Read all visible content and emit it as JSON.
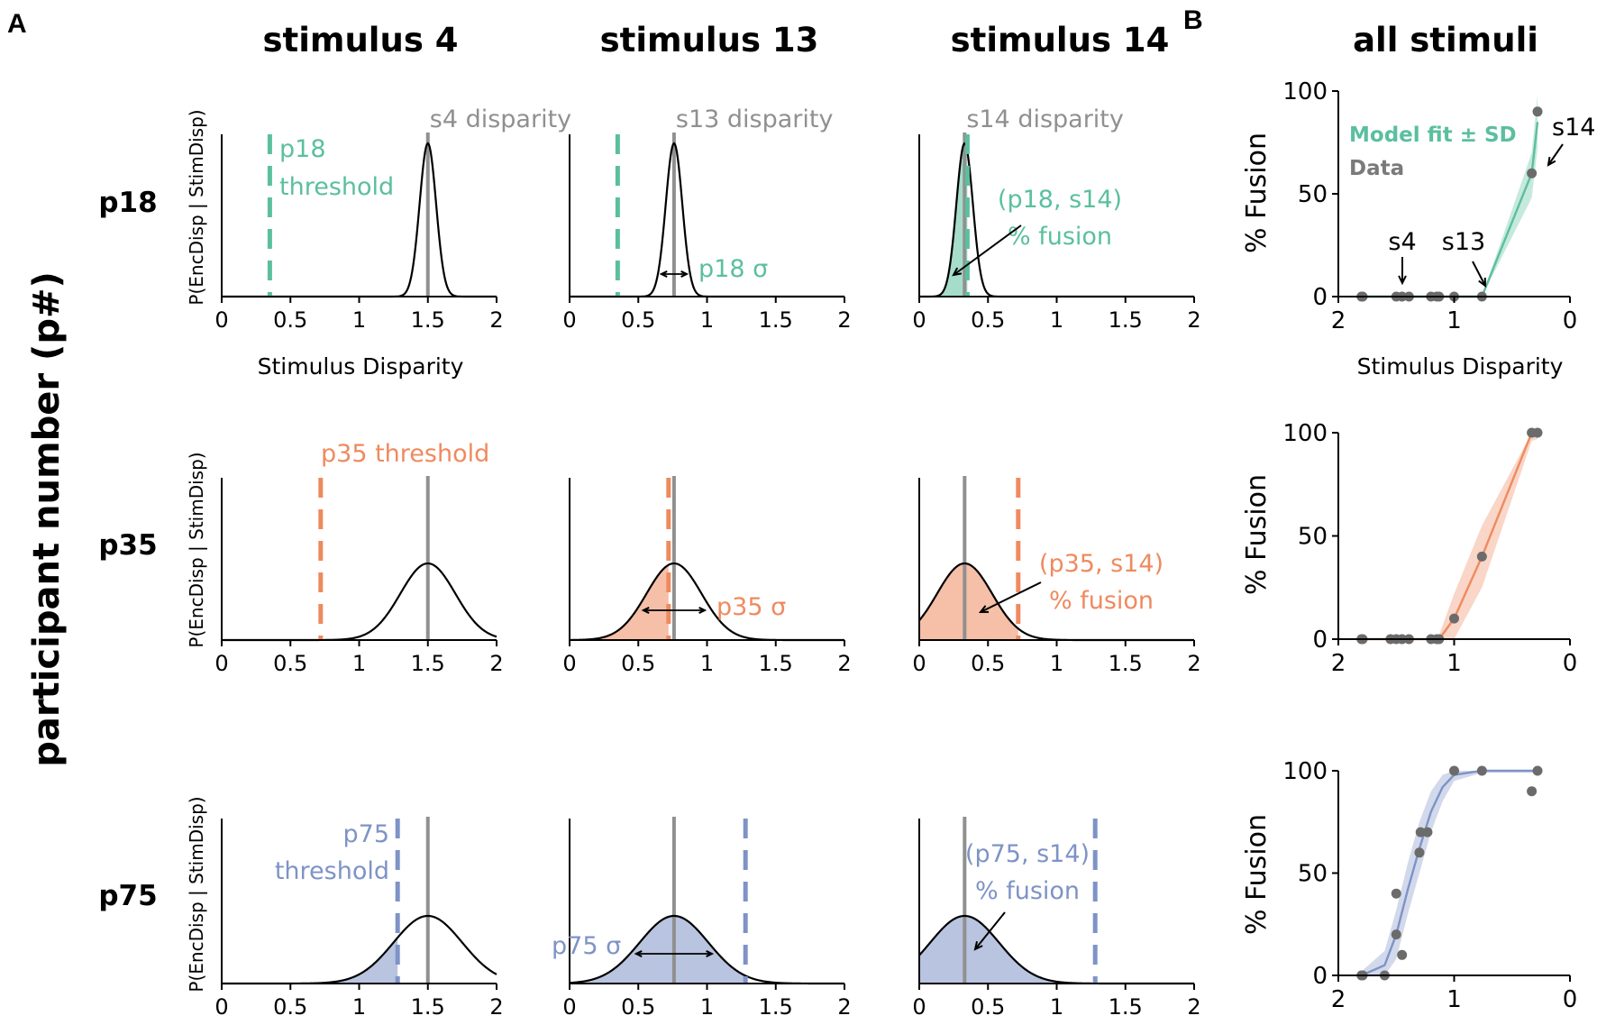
{
  "labels": {
    "panel_a": "A",
    "panel_b": "B",
    "row_axis_title": "participant number (p#)",
    "pdf_ylabel": "P(EncDisp | StimDisp)",
    "pdf_xlabel": "Stimulus Disparity",
    "fusion_ylabel": "% Fusion",
    "fusion_xlabel": "Stimulus Disparity",
    "legend_model": "Model fit ± SD",
    "legend_data": "Data"
  },
  "columns": [
    "stimulus 4",
    "stimulus 13",
    "stimulus 14",
    "all stimuli"
  ],
  "rows": [
    "p18",
    "p35",
    "p75"
  ],
  "colors": {
    "p18": "#5bbf9f",
    "p35": "#ef8a5f",
    "p75": "#7e93c6",
    "disparity_line": "#909090",
    "curve": "#000000",
    "data_point": "#6b6b6b"
  },
  "chart_data": {
    "type": "line",
    "stimuli": [
      {
        "name": "s4",
        "disparity": 1.5,
        "label": "s4 disparity"
      },
      {
        "name": "s13",
        "disparity": 0.76,
        "label": "s13 disparity"
      },
      {
        "name": "s14",
        "disparity": 0.33,
        "label": "s14 disparity"
      }
    ],
    "pdf_xlim": [
      0,
      2
    ],
    "pdf_xticks": [
      "0",
      "0.5",
      "1",
      "1.5",
      "2"
    ],
    "participants": [
      {
        "id": "p18",
        "threshold": 0.35,
        "sigma": 0.06,
        "threshold_label_lines": [
          "p18",
          "threshold"
        ],
        "sigma_label": "p18 σ",
        "fusion_label_lines": [
          "(p18, s14)",
          "% fusion"
        ]
      },
      {
        "id": "p35",
        "threshold": 0.72,
        "sigma": 0.2,
        "threshold_label_lines": [
          "p35 threshold"
        ],
        "sigma_label": "p35 σ",
        "fusion_label_lines": [
          "(p35, s14)",
          "% fusion"
        ]
      },
      {
        "id": "p75",
        "threshold": 1.28,
        "sigma": 0.25,
        "threshold_label_lines": [
          "p75",
          "threshold"
        ],
        "sigma_label": "p75 σ",
        "fusion_label_lines": [
          "(p75, s14)",
          "% fusion"
        ]
      }
    ],
    "fusion_charts": [
      {
        "participant": "p18",
        "xlim": [
          2,
          0
        ],
        "ylim": [
          0,
          100
        ],
        "xticks": [
          "2",
          "1",
          "0"
        ],
        "yticks": [
          "0",
          "50",
          "100"
        ],
        "data": [
          [
            1.8,
            0
          ],
          [
            1.79,
            0
          ],
          [
            1.5,
            0
          ],
          [
            1.45,
            0
          ],
          [
            1.39,
            0
          ],
          [
            1.2,
            0
          ],
          [
            1.15,
            0
          ],
          [
            1.13,
            0
          ],
          [
            1.0,
            0
          ],
          [
            0.76,
            0
          ],
          [
            0.33,
            60
          ],
          [
            0.28,
            90
          ]
        ],
        "fit": [
          [
            1.8,
            0
          ],
          [
            1.2,
            0
          ],
          [
            0.76,
            0
          ],
          [
            0.33,
            60
          ],
          [
            0.28,
            85
          ]
        ],
        "band_upper": [
          [
            1.8,
            0
          ],
          [
            0.76,
            0
          ],
          [
            0.33,
            70
          ],
          [
            0.28,
            98
          ]
        ],
        "band_lower": [
          [
            1.8,
            0
          ],
          [
            0.76,
            0
          ],
          [
            0.33,
            48
          ],
          [
            0.28,
            72
          ]
        ],
        "annotations": [
          "s4",
          "s13",
          "s14"
        ]
      },
      {
        "participant": "p35",
        "xlim": [
          2,
          0
        ],
        "ylim": [
          0,
          100
        ],
        "xticks": [
          "2",
          "1",
          "0"
        ],
        "yticks": [
          "0",
          "50",
          "100"
        ],
        "data": [
          [
            1.8,
            0
          ],
          [
            1.79,
            0
          ],
          [
            1.55,
            0
          ],
          [
            1.5,
            0
          ],
          [
            1.45,
            0
          ],
          [
            1.39,
            0
          ],
          [
            1.2,
            0
          ],
          [
            1.15,
            0
          ],
          [
            1.13,
            0
          ],
          [
            1.0,
            10
          ],
          [
            0.76,
            40
          ],
          [
            0.33,
            100
          ],
          [
            0.28,
            100
          ]
        ],
        "fit": [
          [
            1.8,
            0
          ],
          [
            1.2,
            0
          ],
          [
            1.13,
            0
          ],
          [
            1.0,
            10
          ],
          [
            0.76,
            40
          ],
          [
            0.33,
            100
          ],
          [
            0.28,
            100
          ]
        ],
        "band_upper": [
          [
            1.8,
            0
          ],
          [
            1.2,
            0
          ],
          [
            1.13,
            2
          ],
          [
            1.0,
            22
          ],
          [
            0.76,
            55
          ],
          [
            0.33,
            100
          ],
          [
            0.28,
            100
          ]
        ],
        "band_lower": [
          [
            1.8,
            0
          ],
          [
            1.2,
            0
          ],
          [
            1.0,
            0
          ],
          [
            0.76,
            25
          ],
          [
            0.33,
            96
          ],
          [
            0.28,
            97
          ]
        ]
      },
      {
        "participant": "p75",
        "xlim": [
          2,
          0
        ],
        "ylim": [
          0,
          100
        ],
        "xticks": [
          "2",
          "1",
          "0"
        ],
        "yticks": [
          "0",
          "50",
          "100"
        ],
        "data": [
          [
            1.8,
            0
          ],
          [
            1.79,
            0
          ],
          [
            1.6,
            0
          ],
          [
            1.5,
            20
          ],
          [
            1.45,
            10
          ],
          [
            1.5,
            40
          ],
          [
            1.3,
            60
          ],
          [
            1.29,
            70
          ],
          [
            1.23,
            70
          ],
          [
            1.0,
            100
          ],
          [
            0.76,
            100
          ],
          [
            0.33,
            90
          ],
          [
            0.28,
            100
          ]
        ],
        "fit": [
          [
            1.8,
            0
          ],
          [
            1.6,
            5
          ],
          [
            1.5,
            20
          ],
          [
            1.4,
            42
          ],
          [
            1.3,
            62
          ],
          [
            1.2,
            80
          ],
          [
            1.1,
            92
          ],
          [
            1.0,
            98
          ],
          [
            0.76,
            100
          ],
          [
            0.28,
            100
          ]
        ],
        "band_upper": [
          [
            1.8,
            2
          ],
          [
            1.6,
            12
          ],
          [
            1.5,
            32
          ],
          [
            1.4,
            55
          ],
          [
            1.3,
            75
          ],
          [
            1.2,
            90
          ],
          [
            1.1,
            98
          ],
          [
            1.0,
            100
          ],
          [
            0.28,
            100
          ]
        ],
        "band_lower": [
          [
            1.8,
            0
          ],
          [
            1.6,
            0
          ],
          [
            1.5,
            8
          ],
          [
            1.4,
            30
          ],
          [
            1.3,
            50
          ],
          [
            1.2,
            70
          ],
          [
            1.1,
            85
          ],
          [
            1.0,
            95
          ],
          [
            0.76,
            99
          ],
          [
            0.28,
            99
          ]
        ]
      }
    ]
  }
}
